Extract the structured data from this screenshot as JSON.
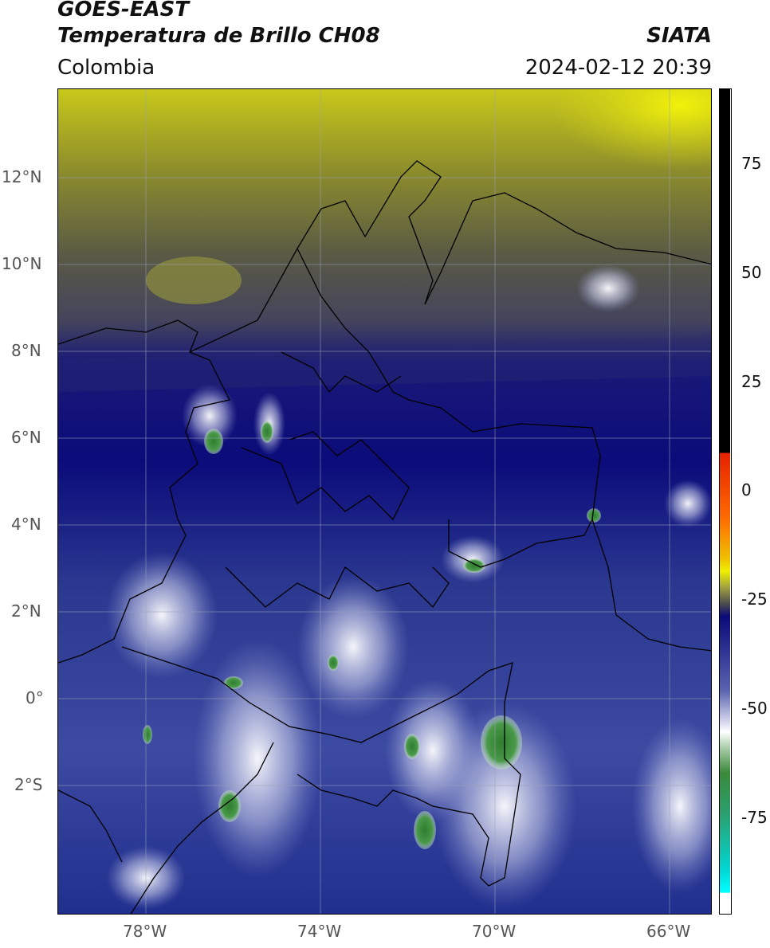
{
  "header": {
    "title_line1": "GOES-EAST",
    "title_line2": "Temperatura de Brillo CH08",
    "region": "Colombia",
    "brand": "SIATA",
    "timestamp": "2024-02-12 20:39"
  },
  "map": {
    "lon_range": [
      -80,
      -65
    ],
    "lat_range": [
      -5,
      14
    ],
    "lat_ticks": [
      {
        "label": "12°N"
      },
      {
        "label": "10°N"
      },
      {
        "label": "8°N"
      },
      {
        "label": "6°N"
      },
      {
        "label": "4°N"
      },
      {
        "label": "2°N"
      },
      {
        "label": "0°"
      },
      {
        "label": "2°S"
      }
    ],
    "lon_ticks": [
      {
        "label": "78°W"
      },
      {
        "label": "74°W"
      },
      {
        "label": "70°W"
      },
      {
        "label": "66°W"
      }
    ]
  },
  "colorbar": {
    "labels": [
      "75",
      "50",
      "25",
      "0",
      "-25",
      "-50",
      "-75"
    ],
    "colors": {
      "black": "#000000",
      "red": "#e62200",
      "orange": "#f0a000",
      "yellow": "#f0f000",
      "olive": "#6b6b3a",
      "navy": "#0a0a7a",
      "blue": "#3a4aa0",
      "white": "#ffffff",
      "green": "#3a8a3a",
      "cyan": "#00e0e0"
    }
  }
}
